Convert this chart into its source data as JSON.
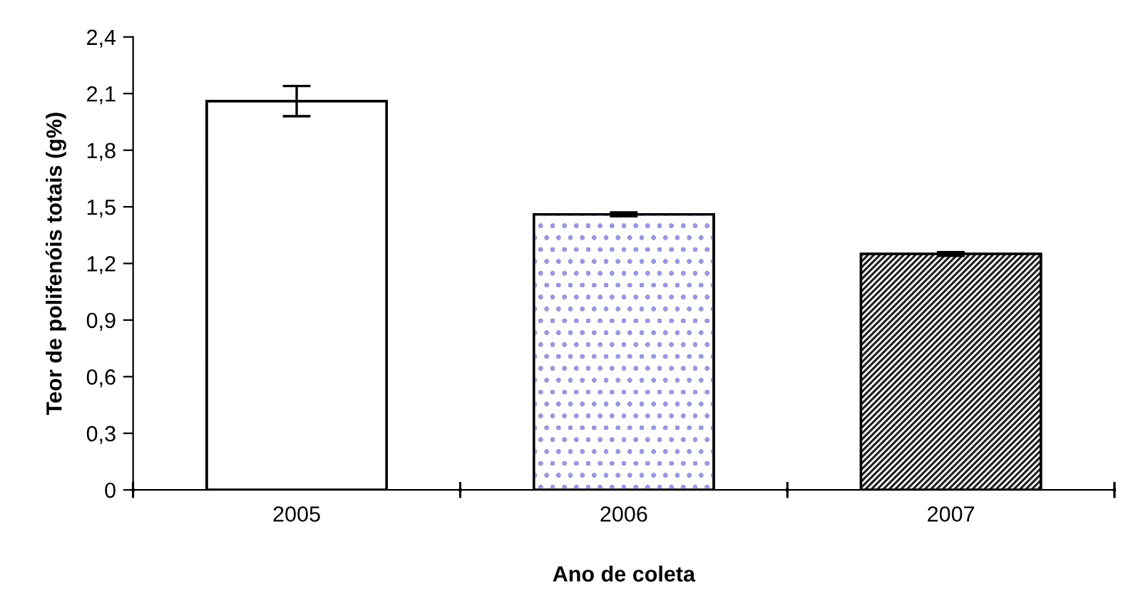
{
  "chart_data": {
    "type": "bar",
    "xlabel": "Ano de coleta",
    "ylabel": "Teor de polifenóis totais (g%)",
    "categories": [
      "2005",
      "2006",
      "2007"
    ],
    "values": [
      2.06,
      1.46,
      1.25
    ],
    "errors": [
      0.08,
      0.01,
      0.01
    ],
    "colors": [
      "#ffffff",
      "#ffffff",
      "#ffffff"
    ],
    "ylim": [
      0,
      2.4
    ],
    "yticks": [
      0,
      {
        "value": 0.3,
        "label": "0,3"
      },
      {
        "value": 0.6,
        "label": "0,6"
      },
      {
        "value": 0.9,
        "label": "0,9"
      },
      {
        "value": 1.2,
        "label": "1,2"
      },
      {
        "value": 1.5,
        "label": "1,5"
      },
      {
        "value": 1.8,
        "label": "1,8"
      },
      {
        "value": 2.1,
        "label": "2,1"
      },
      {
        "value": 2.4,
        "label": "2,4"
      }
    ],
    "grid": false
  }
}
